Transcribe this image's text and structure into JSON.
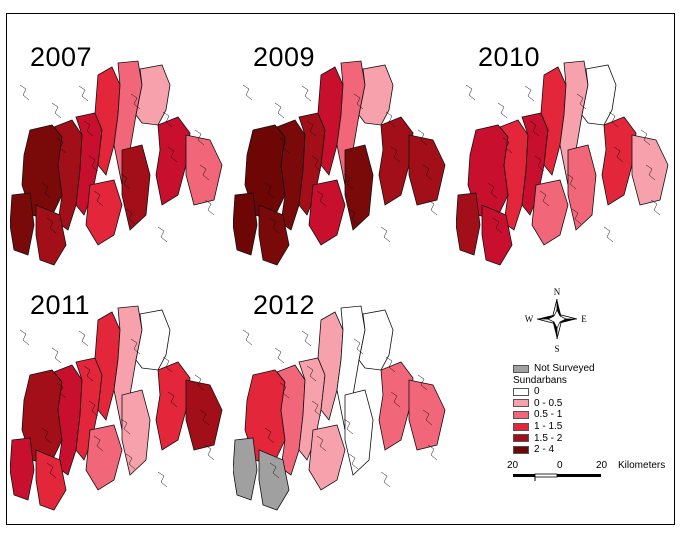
{
  "panels": [
    {
      "year": "2007",
      "fills": [
        "#7a0a0a",
        "#a30f18",
        "#c8102e",
        "#e3263a",
        "#f2667a",
        "#f7a1ad",
        "#c8102e",
        "#7a0a0a",
        "#a30f18",
        "#e3263a",
        "#f2667a",
        "#a30f18"
      ]
    },
    {
      "year": "2009",
      "fills": [
        "#6e0606",
        "#7a0a0a",
        "#a30f18",
        "#c8102e",
        "#f2667a",
        "#f7a1ad",
        "#a30f18",
        "#6e0606",
        "#7a0a0a",
        "#c8102e",
        "#a30f18",
        "#7a0a0a"
      ]
    },
    {
      "year": "2010",
      "fills": [
        "#c8102e",
        "#e3263a",
        "#c8102e",
        "#e3263a",
        "#f7a1ad",
        "#ffffff",
        "#e3263a",
        "#a30f18",
        "#c8102e",
        "#f2667a",
        "#f7a1ad",
        "#f2667a"
      ]
    },
    {
      "year": "2011",
      "fills": [
        "#a30f18",
        "#c8102e",
        "#e3263a",
        "#e3263a",
        "#f7a1ad",
        "#ffffff",
        "#e3263a",
        "#c8102e",
        "#e3263a",
        "#f2667a",
        "#a30f18",
        "#f7a1ad"
      ]
    },
    {
      "year": "2012",
      "fills": [
        "#e3263a",
        "#f2667a",
        "#f7a1ad",
        "#f7a1ad",
        "#ffffff",
        "#ffffff",
        "#f2667a",
        "#a0a0a0",
        "#a0a0a0",
        "#f7a1ad",
        "#f2667a",
        "#ffffff"
      ]
    }
  ],
  "compass": {
    "n": "N",
    "s": "S",
    "e": "E",
    "w": "W"
  },
  "legend": {
    "not_surveyed": {
      "label": "Not Surveyed",
      "color": "#a0a0a0"
    },
    "title": "Sundarbans",
    "classes": [
      {
        "label": "0",
        "color": "#ffffff"
      },
      {
        "label": "0 - 0.5",
        "color": "#f7a1ad"
      },
      {
        "label": "0.5 - 1",
        "color": "#f2667a"
      },
      {
        "label": "1 - 1.5",
        "color": "#e3263a"
      },
      {
        "label": "1.5 - 2",
        "color": "#a30f18"
      },
      {
        "label": "2 - 4",
        "color": "#6e0606"
      }
    ]
  },
  "scale_bar": {
    "left": "20",
    "mid": "0",
    "right": "20",
    "unit": "Kilometers"
  }
}
